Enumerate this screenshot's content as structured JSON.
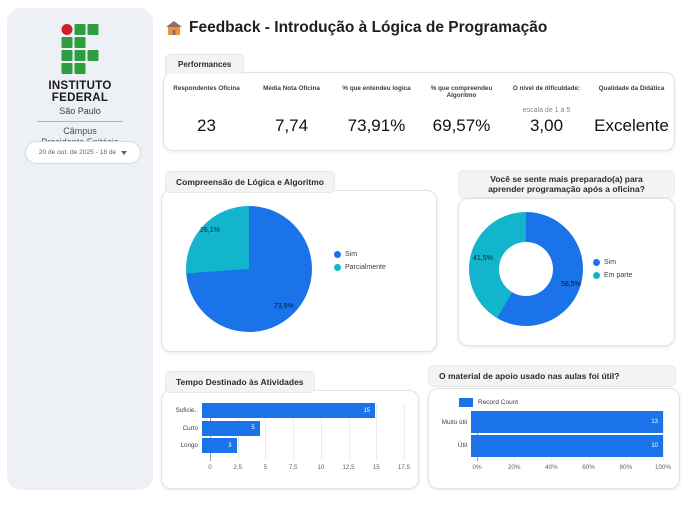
{
  "sidebar": {
    "institute_line1": "INSTITUTO",
    "institute_line2": "FEDERAL",
    "region": "São Paulo",
    "campus_line1": "Câmpus",
    "campus_line2": "Presidente Epitácio",
    "date_range": "20 de out. de 2025 - 18 de"
  },
  "header": {
    "title": "Feedback - Introdução à Lógica de Programação"
  },
  "tab": {
    "label": "Performances"
  },
  "metrics": [
    {
      "label": "Respondentes Oficina",
      "value": "23"
    },
    {
      "label": "Média Nota Oficina",
      "value": "7,74"
    },
    {
      "label": "% que entendeu logica",
      "value": "73,91%"
    },
    {
      "label": "% que compreendeu Algoritmo",
      "value": "69,57%"
    },
    {
      "label": "O nível de dificuldade:",
      "sublabel": "escala de 1 a 5",
      "value": "3,00"
    },
    {
      "label": "Qualidade da Didática",
      "value": "Excelente"
    }
  ],
  "colors": {
    "blue": "#1a73e8",
    "teal": "#12b5cb"
  },
  "chart_data": [
    {
      "type": "pie",
      "title": "Compreensão de Lógica e Algoritmo",
      "labels": [
        "Sim",
        "Parcialmente"
      ],
      "values": [
        73.9,
        26.1
      ],
      "value_labels": [
        "73,9%",
        "26,1%"
      ],
      "colors": [
        "#1a73e8",
        "#12b5cb"
      ],
      "legend_position": "right",
      "donut": false
    },
    {
      "type": "pie",
      "title": "Você se sente mais preparado(a) para aprender programação após a oficina?",
      "labels": [
        "Sim",
        "Em parte"
      ],
      "values": [
        58.5,
        41.5
      ],
      "value_labels": [
        "58,5%",
        "41,5%"
      ],
      "colors": [
        "#1a73e8",
        "#12b5cb"
      ],
      "legend_position": "right",
      "donut": true
    },
    {
      "type": "bar",
      "title": "Tempo Destinado às Atividades",
      "orientation": "horizontal",
      "categories": [
        "Suficie..",
        "Curto",
        "Longo"
      ],
      "values": [
        15,
        5,
        3
      ],
      "axis_max": 17.5,
      "x_ticks": [
        "0",
        "2,5",
        "5",
        "7,5",
        "10",
        "12,5",
        "15",
        "17,5"
      ],
      "color": "#1a73e8",
      "grid": true
    },
    {
      "type": "bar",
      "title": "O material de apoio usado nas aulas foi útil?",
      "orientation": "horizontal",
      "legend": "Record Count",
      "categories": [
        "Muito útil",
        "Útil"
      ],
      "values": [
        13,
        10
      ],
      "bar_display_percent": [
        100,
        100
      ],
      "x_ticks": [
        "0%",
        "20%",
        "40%",
        "60%",
        "80%",
        "100%"
      ],
      "color": "#1a73e8",
      "grid": true
    }
  ]
}
